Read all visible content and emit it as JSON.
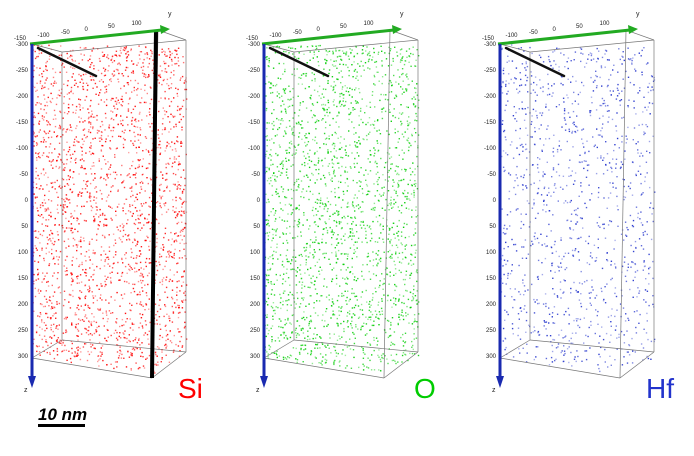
{
  "panels": [
    {
      "element": "Si",
      "color": "#ff0000",
      "density": 0.9,
      "rod": true
    },
    {
      "element": "O",
      "color": "#00cc00",
      "density": 0.85,
      "rod": false
    },
    {
      "element": "Hf",
      "color": "#2233cc",
      "density": 0.45,
      "rod": false
    }
  ],
  "axes": {
    "y_label": "y",
    "z_label": "z",
    "y_ticks": [
      "-150",
      "-100",
      "-50",
      "0",
      "50",
      "100"
    ],
    "z_ticks": [
      "-300",
      "-250",
      "-200",
      "-150",
      "-100",
      "-50",
      "0",
      "50",
      "100",
      "150",
      "200",
      "250",
      "300"
    ],
    "y_color": "#22aa22",
    "z_color": "#1a2ab0"
  },
  "scale_bar": {
    "label": "10 nm"
  }
}
